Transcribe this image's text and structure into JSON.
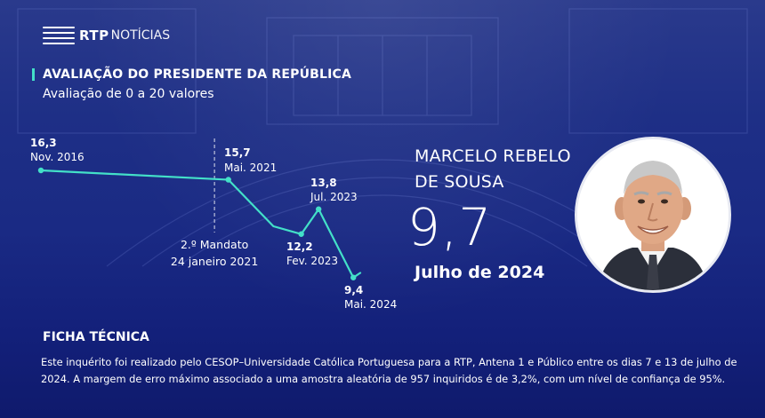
{
  "brand": {
    "name": "RTP",
    "suffix": "NOTÍCIAS"
  },
  "header": {
    "title": "AVALIAÇÃO DO PRESIDENTE DA REPÚBLICA",
    "subtitle": "Avaliação de 0 a 20 valores"
  },
  "colors": {
    "line": "#43e0c8",
    "accent": "#43e0c8",
    "background": "#1a2a84",
    "text": "#ffffff"
  },
  "chart_data": {
    "type": "line",
    "title": "AVALIAÇÃO DO PRESIDENTE DA REPÚBLICA",
    "subtitle": "Avaliação de 0 a 20 valores",
    "xlabel": "",
    "ylabel": "",
    "grid": false,
    "points": [
      {
        "x": "2016-11",
        "y": 16.3,
        "label": "16,3",
        "date": "Nov. 2016"
      },
      {
        "x": "2021-05",
        "y": 15.7,
        "label": "15,7",
        "date": "Mai. 2021"
      },
      {
        "x": "2022-06",
        "y": 12.7
      },
      {
        "x": "2023-02",
        "y": 12.2,
        "label": "12,2",
        "date": "Fev. 2023"
      },
      {
        "x": "2023-07",
        "y": 13.8,
        "label": "13,8",
        "date": "Jul. 2023"
      },
      {
        "x": "2024-05",
        "y": 9.4,
        "label": "9,4",
        "date": "Mai. 2024"
      },
      {
        "x": "2024-07",
        "y": 9.7
      }
    ],
    "annotations": [
      {
        "x": "2021-01",
        "line1": "2.º Mandato",
        "line2": "24 janeiro 2021"
      }
    ]
  },
  "highlight": {
    "name": "MARCELO REBELO DE SOUSA",
    "value": "9,7",
    "date": "Julho de 2024"
  },
  "ficha": {
    "heading": "FICHA TÉCNICA",
    "text": "Este inquérito foi realizado pelo CESOP–Universidade Católica Portuguesa para a RTP, Antena 1 e Público  entre os dias 7 e 13 de julho de 2024. A margem de erro máximo associado a uma amostra aleatória de 957 inquiridos é de 3,2%, com um nível de confiança de 95%."
  }
}
